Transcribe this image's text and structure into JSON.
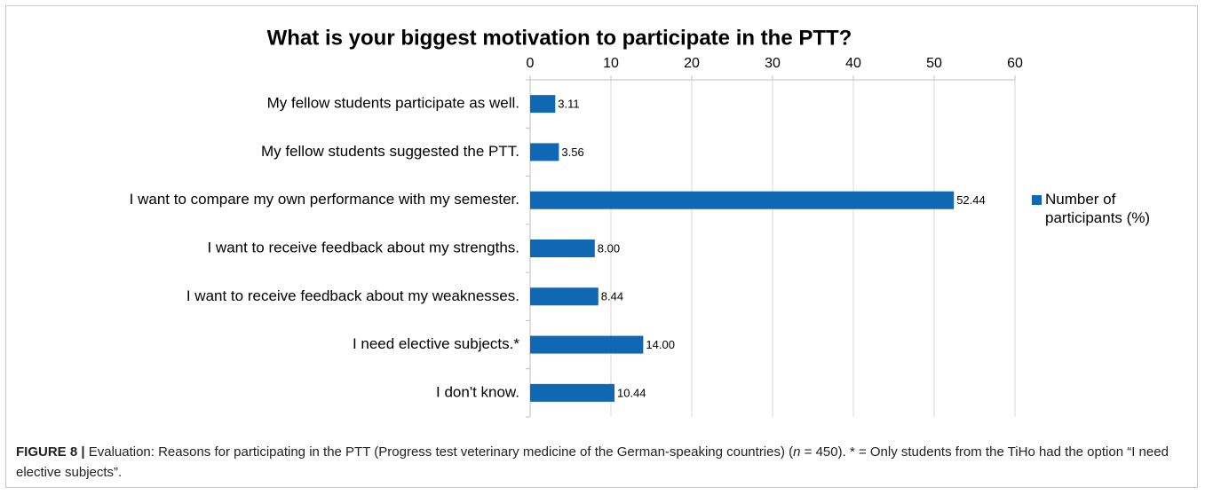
{
  "chart_data": {
    "type": "bar",
    "orientation": "horizontal",
    "title": "What is your biggest motivation to participate in the PTT?",
    "categories": [
      "My fellow students participate as well.",
      "My fellow students suggested the PTT.",
      "I want to compare my own performance with my semester.",
      "I want to receive feedback about my strengths.",
      "I want to receive feedback about my weaknesses.",
      "I need elective subjects.*",
      "I don't know."
    ],
    "series": [
      {
        "name": "Number of participants (%)",
        "color": "#1068b4",
        "values": [
          3.11,
          3.56,
          52.44,
          8,
          8.44,
          14,
          10.44
        ],
        "value_labels": [
          "3.11",
          "3.56",
          "52.44",
          "8.00",
          "8.44",
          "14.00",
          "10.44"
        ]
      }
    ],
    "xlim": [
      0,
      60
    ],
    "xticks": [
      0,
      10,
      20,
      30,
      40,
      50,
      60
    ],
    "grid": true,
    "legend": "right"
  },
  "caption": {
    "label": "FIGURE 8 |",
    "text_before": "Evaluation: Reasons for participating in the PTT (Progress test veterinary medicine of the German-speaking countries) (",
    "italic": "n",
    "text_after": " = 450). * = Only students from the TiHo had the option “I need elective subjects”."
  }
}
